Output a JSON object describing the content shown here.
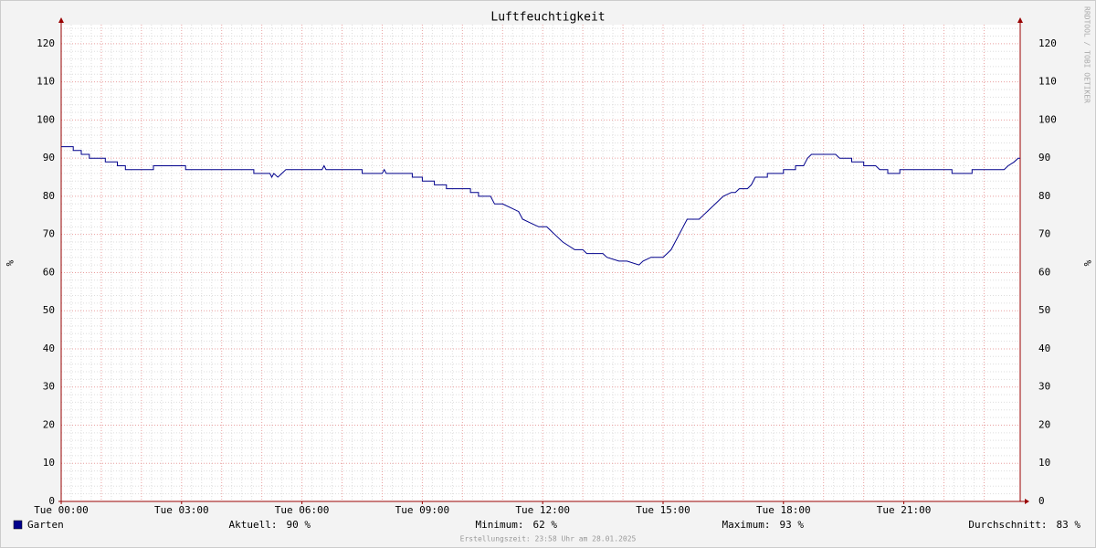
{
  "chart_data": {
    "type": "line",
    "title": "Luftfeuchtigkeit",
    "ylabel": "%",
    "watermark": "RRDTOOL / TOBI OETIKER",
    "footer": "Erstellungszeit: 23:58 Uhr am 28.01.2025",
    "xlim": [
      0,
      23.9
    ],
    "xticks": [
      {
        "value": 0,
        "label": "Tue 00:00"
      },
      {
        "value": 3,
        "label": "Tue 03:00"
      },
      {
        "value": 6,
        "label": "Tue 06:00"
      },
      {
        "value": 9,
        "label": "Tue 09:00"
      },
      {
        "value": 12,
        "label": "Tue 12:00"
      },
      {
        "value": 15,
        "label": "Tue 15:00"
      },
      {
        "value": 18,
        "label": "Tue 18:00"
      },
      {
        "value": 21,
        "label": "Tue 21:00"
      }
    ],
    "xgrid": [
      0,
      1,
      2,
      3,
      4,
      5,
      6,
      7,
      8,
      9,
      10,
      11,
      12,
      13,
      14,
      15,
      16,
      17,
      18,
      19,
      20,
      21,
      22,
      23
    ],
    "ylim": [
      0,
      125
    ],
    "yticks": [
      0,
      10,
      20,
      30,
      40,
      50,
      60,
      70,
      80,
      90,
      100,
      110,
      120
    ],
    "grid": true,
    "series": [
      {
        "name": "Garten",
        "color": "#00008c",
        "x": [
          0,
          0.3,
          0.3,
          0.5,
          0.5,
          0.7,
          0.7,
          1.1,
          1.1,
          1.4,
          1.4,
          1.6,
          1.6,
          2.3,
          2.3,
          3.1,
          3.1,
          4.8,
          4.8,
          5.2,
          5.25,
          5.3,
          5.4,
          5.5,
          5.6,
          6.5,
          6.55,
          6.6,
          7.5,
          7.5,
          8.0,
          8.05,
          8.1,
          8.75,
          8.75,
          9.0,
          9.0,
          9.3,
          9.3,
          9.6,
          9.6,
          10.2,
          10.2,
          10.4,
          10.4,
          10.7,
          10.8,
          11.0,
          11.2,
          11.4,
          11.5,
          11.7,
          11.9,
          12.1,
          12.3,
          12.5,
          12.8,
          13.0,
          13.1,
          13.5,
          13.6,
          13.9,
          14.1,
          14.4,
          14.5,
          14.7,
          15.0,
          15.1,
          15.2,
          15.4,
          15.5,
          15.6,
          15.9,
          16.0,
          16.1,
          16.3,
          16.5,
          16.7,
          16.8,
          16.9,
          17.1,
          17.2,
          17.3,
          17.6,
          17.6,
          18.0,
          18.0,
          18.3,
          18.3,
          18.5,
          18.6,
          18.7,
          19.3,
          19.4,
          19.7,
          19.7,
          20.0,
          20.0,
          20.3,
          20.4,
          20.6,
          20.6,
          20.9,
          20.9,
          22.2,
          22.2,
          22.7,
          22.7,
          23.5,
          23.6,
          23.75,
          23.85,
          23.9
        ],
        "values": [
          93,
          93,
          92,
          92,
          91,
          91,
          90,
          90,
          89,
          89,
          88,
          88,
          87,
          87,
          88,
          88,
          87,
          87,
          86,
          86,
          85,
          86,
          85,
          86,
          87,
          87,
          88,
          87,
          87,
          86,
          86,
          87,
          86,
          86,
          85,
          85,
          84,
          84,
          83,
          83,
          82,
          82,
          81,
          81,
          80,
          80,
          78,
          78,
          77,
          76,
          74,
          73,
          72,
          72,
          70,
          68,
          66,
          66,
          65,
          65,
          64,
          63,
          63,
          62,
          63,
          64,
          64,
          65,
          66,
          70,
          72,
          74,
          74,
          75,
          76,
          78,
          80,
          81,
          81,
          82,
          82,
          83,
          85,
          85,
          86,
          86,
          87,
          87,
          88,
          88,
          90,
          91,
          91,
          90,
          90,
          89,
          89,
          88,
          88,
          87,
          87,
          86,
          86,
          87,
          87,
          86,
          86,
          87,
          87,
          88,
          89,
          90,
          90
        ]
      }
    ],
    "stats": [
      {
        "label": "Aktuell:",
        "value": "90 %"
      },
      {
        "label": "Minimum:",
        "value": "62 %"
      },
      {
        "label": "Maximum:",
        "value": "93 %"
      },
      {
        "label": "Durchschnitt:",
        "value": "83 %"
      }
    ]
  }
}
